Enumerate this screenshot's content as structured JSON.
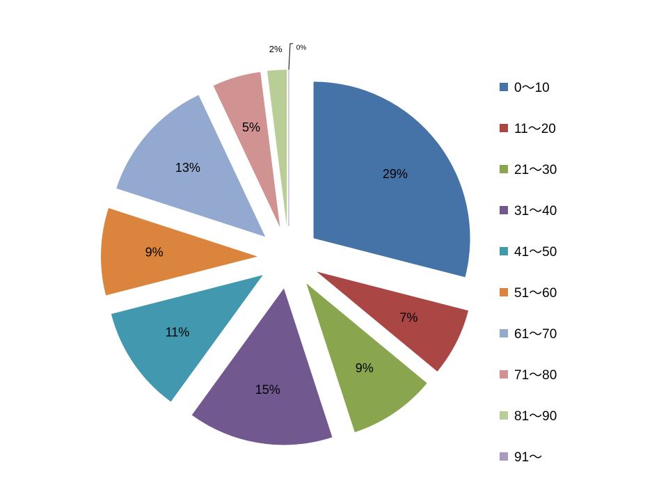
{
  "chart_data": {
    "type": "pie",
    "exploded": true,
    "slices": [
      {
        "category": "0〜10",
        "value": 29,
        "label": "29%",
        "color": "#4572A7"
      },
      {
        "category": "11〜20",
        "value": 7,
        "label": "7%",
        "color": "#AA4643"
      },
      {
        "category": "21〜30",
        "value": 9,
        "label": "9%",
        "color": "#89A54E"
      },
      {
        "category": "31〜40",
        "value": 15,
        "label": "15%",
        "color": "#71588F"
      },
      {
        "category": "41〜50",
        "value": 11,
        "label": "11%",
        "color": "#4198AF"
      },
      {
        "category": "51〜60",
        "value": 9,
        "label": "9%",
        "color": "#DB843D"
      },
      {
        "category": "61〜70",
        "value": 13,
        "label": "13%",
        "color": "#93A9CF"
      },
      {
        "category": "71〜80",
        "value": 5,
        "label": "5%",
        "color": "#D19392"
      },
      {
        "category": "81〜90",
        "value": 2,
        "label": "2%",
        "color": "#B9CD96"
      },
      {
        "category": "91〜",
        "value": 0,
        "label": "0%",
        "color": "#A99BBD"
      }
    ],
    "legend_position": "right"
  }
}
